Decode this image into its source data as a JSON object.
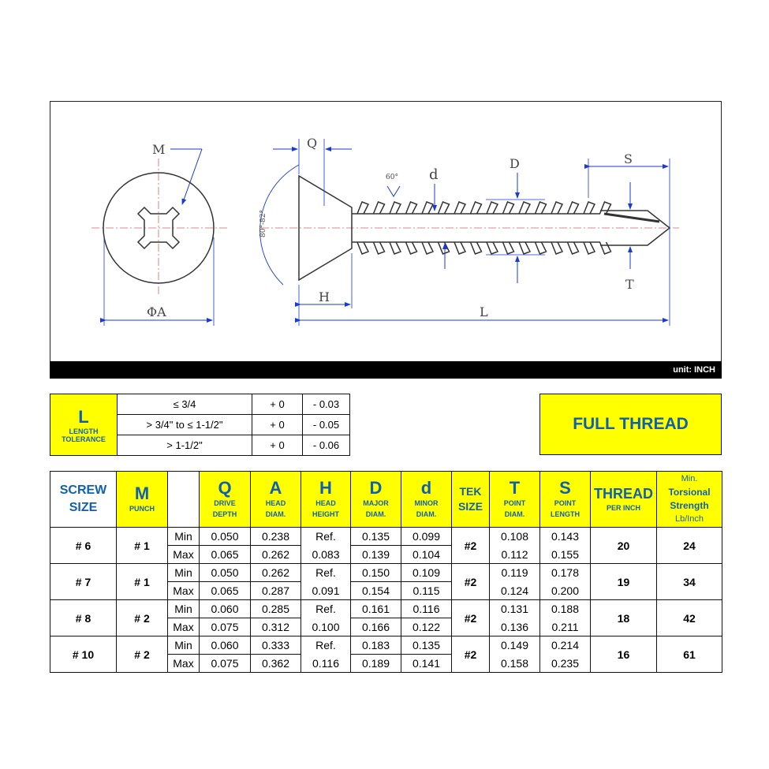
{
  "drawing": {
    "labels": {
      "M": "M",
      "Q": "Q",
      "angle60": "60°",
      "d": "d",
      "D": "D",
      "S": "S",
      "T": "T",
      "H": "H",
      "L": "L",
      "A": "ΦA",
      "head_angle": "80°-82°"
    },
    "unit": "unit: INCH"
  },
  "tolerance": {
    "title": "L",
    "subtitle1": "LENGTH",
    "subtitle2": "TOLERANCE",
    "rows": [
      {
        "range": "≤ 3/4",
        "plus": "+ 0",
        "minus": "- 0.03"
      },
      {
        "range": "> 3/4\" to ≤ 1-1/2\"",
        "plus": "+ 0",
        "minus": "- 0.05"
      },
      {
        "range": "> 1-1/2\"",
        "plus": "+ 0",
        "minus": "- 0.06"
      }
    ]
  },
  "thread_type": "FULL THREAD",
  "colors": {
    "yellow": "#ffff00",
    "blue": "#1060b0"
  },
  "spec": {
    "headers": {
      "screw_size": [
        "SCREW",
        "SIZE"
      ],
      "M": {
        "sym": "M",
        "sub": "PUNCH"
      },
      "Q": {
        "sym": "Q",
        "sub1": "DRIVE",
        "sub2": "DEPTH"
      },
      "A": {
        "sym": "A",
        "sub1": "HEAD",
        "sub2": "DIAM."
      },
      "H": {
        "sym": "H",
        "sub1": "HEAD",
        "sub2": "HEIGHT"
      },
      "D": {
        "sym": "D",
        "sub1": "MAJOR",
        "sub2": "DIAM."
      },
      "d": {
        "sym": "d",
        "sub1": "MINOR",
        "sub2": "DIAM."
      },
      "tek": [
        "TEK",
        "SIZE"
      ],
      "T": {
        "sym": "T",
        "sub1": "POINT",
        "sub2": "DIAM."
      },
      "S": {
        "sym": "S",
        "sub1": "POINT",
        "sub2": "LENGTH"
      },
      "thread": {
        "sym": "THREAD",
        "sub": "PER INCH"
      },
      "torsion": [
        "Min.",
        "Torsional",
        "Strength",
        "Lb/Inch"
      ]
    },
    "min_label": "Min",
    "max_label": "Max",
    "rows": [
      {
        "size": "# 6",
        "punch": "# 1",
        "q": [
          "0.050",
          "0.065"
        ],
        "a": [
          "0.238",
          "0.262"
        ],
        "h": [
          "Ref.",
          "0.083"
        ],
        "D": [
          "0.135",
          "0.139"
        ],
        "d": [
          "0.099",
          "0.104"
        ],
        "tek": "#2",
        "t": [
          "0.108",
          "0.112"
        ],
        "s": [
          "0.143",
          "0.155"
        ],
        "thread": "20",
        "torsion": "24"
      },
      {
        "size": "# 7",
        "punch": "# 1",
        "q": [
          "0.050",
          "0.065"
        ],
        "a": [
          "0.262",
          "0.287"
        ],
        "h": [
          "Ref.",
          "0.091"
        ],
        "D": [
          "0.150",
          "0.154"
        ],
        "d": [
          "0.109",
          "0.115"
        ],
        "tek": "#2",
        "t": [
          "0.119",
          "0.124"
        ],
        "s": [
          "0.178",
          "0.200"
        ],
        "thread": "19",
        "torsion": "34"
      },
      {
        "size": "# 8",
        "punch": "# 2",
        "q": [
          "0.060",
          "0.075"
        ],
        "a": [
          "0.285",
          "0.312"
        ],
        "h": [
          "Ref.",
          "0.100"
        ],
        "D": [
          "0.161",
          "0.166"
        ],
        "d": [
          "0.116",
          "0.122"
        ],
        "tek": "#2",
        "t": [
          "0.131",
          "0.136"
        ],
        "s": [
          "0.188",
          "0.211"
        ],
        "thread": "18",
        "torsion": "42"
      },
      {
        "size": "# 10",
        "punch": "# 2",
        "q": [
          "0.060",
          "0.075"
        ],
        "a": [
          "0.333",
          "0.362"
        ],
        "h": [
          "Ref.",
          "0.116"
        ],
        "D": [
          "0.183",
          "0.189"
        ],
        "d": [
          "0.135",
          "0.141"
        ],
        "tek": "#2",
        "t": [
          "0.149",
          "0.158"
        ],
        "s": [
          "0.214",
          "0.235"
        ],
        "thread": "16",
        "torsion": "61"
      }
    ]
  }
}
